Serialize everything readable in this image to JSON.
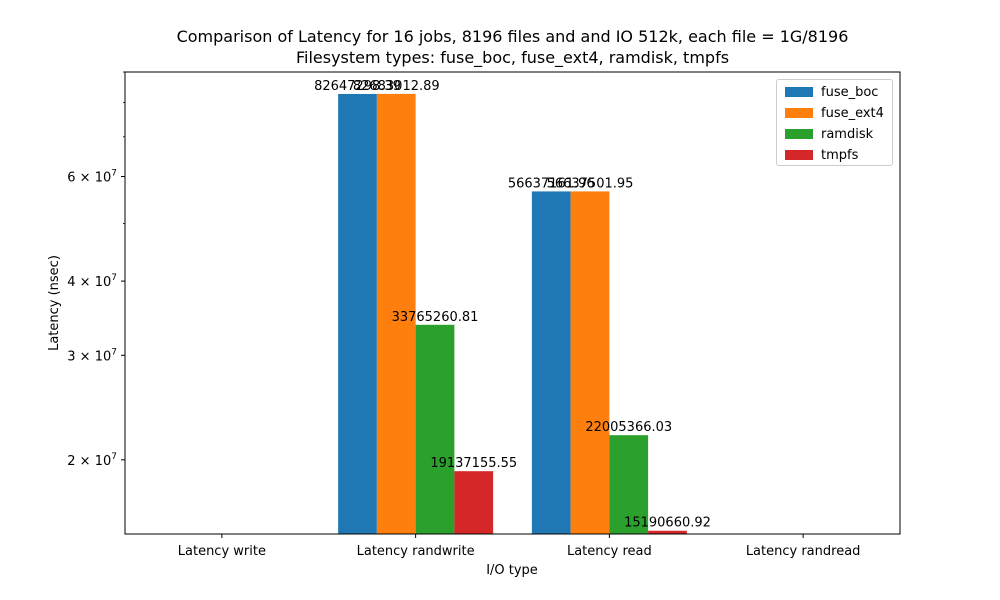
{
  "chart_data": {
    "type": "bar",
    "title": "Comparison of Latency for 16 jobs, 8196 files and  and IO 512k, each file = 1G/8196",
    "subtitle": "Filesystem types: fuse_boc, fuse_ext4, ramdisk, tmpfs",
    "xlabel": "I/O type",
    "ylabel": "Latency (nsec)",
    "yscale": "log",
    "ylim": [
      15000000,
      90000000
    ],
    "categories": [
      "Latency write",
      "Latency randwrite",
      "Latency read",
      "Latency randread"
    ],
    "series": [
      {
        "name": "fuse_boc",
        "color": "#1f77b4",
        "values": [
          null,
          82647298.39,
          56637161.96,
          null
        ],
        "labels": [
          "",
          "82647298.39",
          "56637161.96",
          ""
        ]
      },
      {
        "name": "fuse_ext4",
        "color": "#ff7f0e",
        "values": [
          null,
          82683012.89,
          56637501.95,
          null
        ],
        "labels": [
          "",
          "82683012.89",
          "56637501.95",
          ""
        ]
      },
      {
        "name": "ramdisk",
        "color": "#2ca02c",
        "values": [
          null,
          33765260.81,
          22005366.03,
          null
        ],
        "labels": [
          "",
          "33765260.81",
          "22005366.03",
          ""
        ]
      },
      {
        "name": "tmpfs",
        "color": "#d62728",
        "values": [
          null,
          19137155.55,
          15190660.92,
          null
        ],
        "labels": [
          "",
          "19137155.55",
          "15190660.92",
          ""
        ]
      }
    ],
    "yticks": [
      {
        "value": 20000000,
        "mantissa": "2",
        "exponent": "7"
      },
      {
        "value": 30000000,
        "mantissa": "3",
        "exponent": "7"
      },
      {
        "value": 40000000,
        "mantissa": "4",
        "exponent": "7"
      },
      {
        "value": 60000000,
        "mantissa": "6",
        "exponent": "7"
      }
    ],
    "yminor_ticks": [
      50000000,
      70000000,
      80000000,
      90000000
    ],
    "legend_position": "top-right",
    "grid": false
  }
}
